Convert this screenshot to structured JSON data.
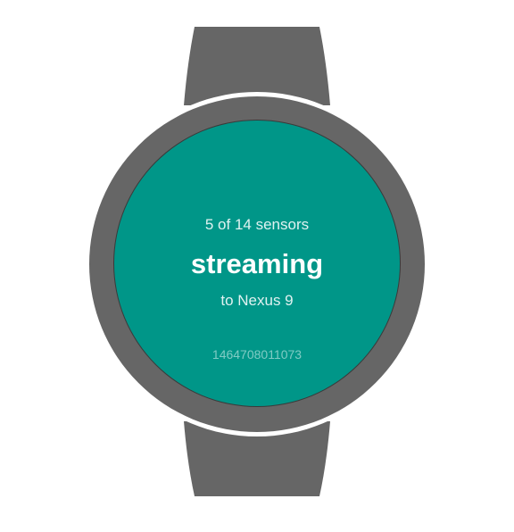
{
  "device": {
    "strap_color": "#666666",
    "bezel_color": "#666666",
    "screen_color": "#009688"
  },
  "screen": {
    "sensors_text": "5 of 14 sensors",
    "status_text": "streaming",
    "target_text": "to Nexus 9",
    "timestamp": "1464708011073"
  }
}
